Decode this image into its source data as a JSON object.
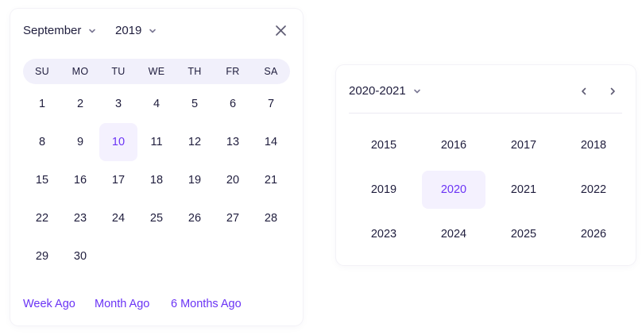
{
  "calendar": {
    "month": "September",
    "year": "2019",
    "weekdays": [
      "SU",
      "MO",
      "TU",
      "WE",
      "TH",
      "FR",
      "SA"
    ],
    "days": [
      "1",
      "2",
      "3",
      "4",
      "5",
      "6",
      "7",
      "8",
      "9",
      "10",
      "11",
      "12",
      "13",
      "14",
      "15",
      "16",
      "17",
      "18",
      "19",
      "20",
      "21",
      "22",
      "23",
      "24",
      "25",
      "26",
      "27",
      "28",
      "29",
      "30"
    ],
    "selected_day": "10",
    "quick_links": [
      "Week Ago",
      "Month Ago",
      "6 Months Ago"
    ]
  },
  "year_picker": {
    "range": "2020-2021",
    "years": [
      "2015",
      "2016",
      "2017",
      "2018",
      "2019",
      "2020",
      "2021",
      "2022",
      "2023",
      "2024",
      "2025",
      "2026"
    ],
    "selected_year": "2020"
  },
  "icons": {
    "close": "close-icon",
    "dropdown": "chevron-down-icon",
    "prev": "chevron-left-icon",
    "next": "chevron-right-icon"
  },
  "colors": {
    "accent": "#6b34f5",
    "selected_bg": "#f4f1fe",
    "weekbar_bg": "#f1f0fb",
    "text": "#1f1d3d"
  }
}
